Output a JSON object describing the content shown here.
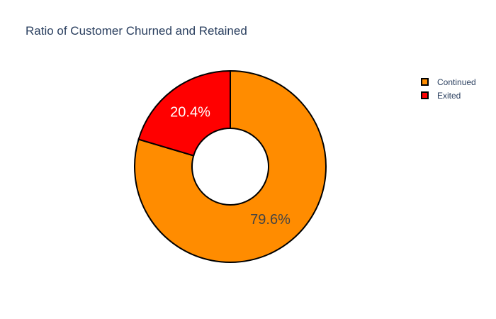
{
  "chart_data": {
    "type": "pie",
    "hole": true,
    "title": "Ratio of Customer Churned and Retained",
    "categories": [
      "Continued",
      "Exited"
    ],
    "values": [
      79.6,
      20.4
    ],
    "labels": [
      "79.6%",
      "20.4%"
    ],
    "colors": [
      "#ff8c00",
      "#ff0000"
    ],
    "label_colors": [
      "#444444",
      "#ffffff"
    ],
    "outline_color": "#000000",
    "legend": {
      "placement": "top-right",
      "items": [
        {
          "label": "Continued",
          "color": "#ff8c00"
        },
        {
          "label": "Exited",
          "color": "#ff0000"
        }
      ]
    }
  }
}
